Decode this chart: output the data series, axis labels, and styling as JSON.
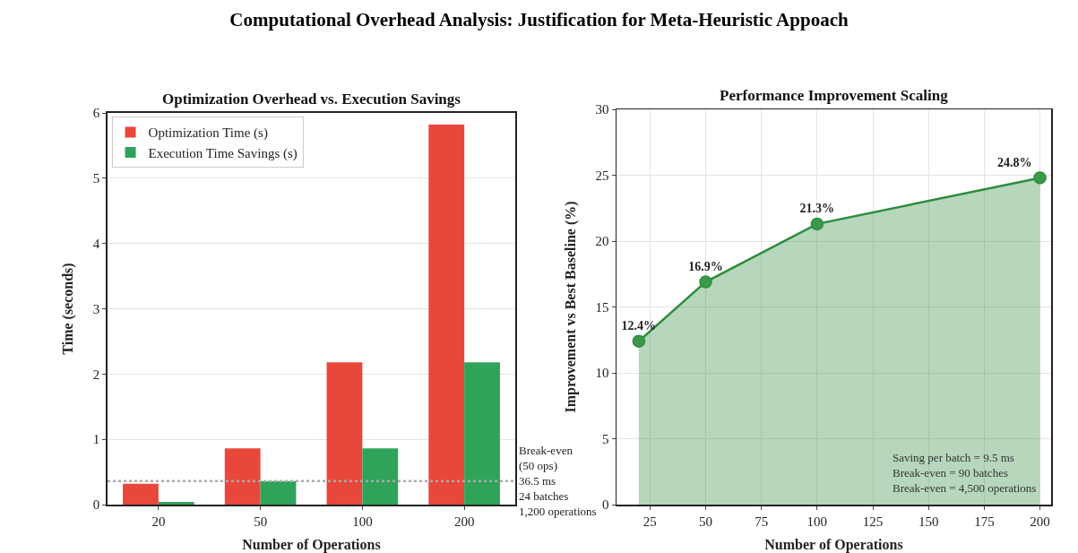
{
  "chart_data": [
    {
      "type": "bar",
      "title": "Computational Overhead Analysis: Justification for Meta-Heuristic Appoach",
      "subtitle": "Optimization Overhead vs. Execution Savings",
      "xlabel": "Number of Operations",
      "ylabel": "Time (seconds)",
      "categories": [
        "20",
        "50",
        "100",
        "200"
      ],
      "series": [
        {
          "name": "Optimization Time (s)",
          "color": "#e8473b",
          "values": [
            0.32,
            0.86,
            2.18,
            5.82
          ]
        },
        {
          "name": "Execution Time Savings (s)",
          "color": "#30a35a",
          "values": [
            0.04,
            0.36,
            0.86,
            2.18
          ]
        }
      ],
      "ylim": [
        0,
        6
      ],
      "yticks": [
        0,
        1,
        2,
        3,
        4,
        5,
        6
      ],
      "grid": "y",
      "legend": "top left",
      "ref_lines": [
        {
          "axis": "y",
          "value": 0.36,
          "label": "Break-even\n(50 ops)\n36.5 ms\n24 batches\n1,200 operations",
          "color": "#aaaaaa",
          "line_style": "dotted"
        }
      ]
    },
    {
      "type": "area",
      "subtitle": "Performance Improvement Scaling",
      "xlabel": "Number of Operations",
      "ylabel": "Improvement vs Best Baseline (%)",
      "x": [
        20,
        50,
        100,
        200
      ],
      "series": [
        {
          "color": "#2e8b3e",
          "values": [
            12.4,
            16.9,
            21.3,
            24.8
          ],
          "value_labels": [
            "12.4%",
            "16.9%",
            "21.3%",
            "24.8%"
          ]
        }
      ],
      "xlim": [
        10,
        205
      ],
      "xticks": [
        25,
        50,
        75,
        100,
        125,
        150,
        175,
        200
      ],
      "ylim": [
        0,
        30
      ],
      "yticks": [
        0,
        5,
        10,
        15,
        20,
        25,
        30
      ],
      "grid": true,
      "marker": "circle",
      "annotations": [
        "Saving per batch = 9.5 ms\nBreak-even = 90 batches\nBreak-even = 4,500 operations"
      ]
    }
  ]
}
